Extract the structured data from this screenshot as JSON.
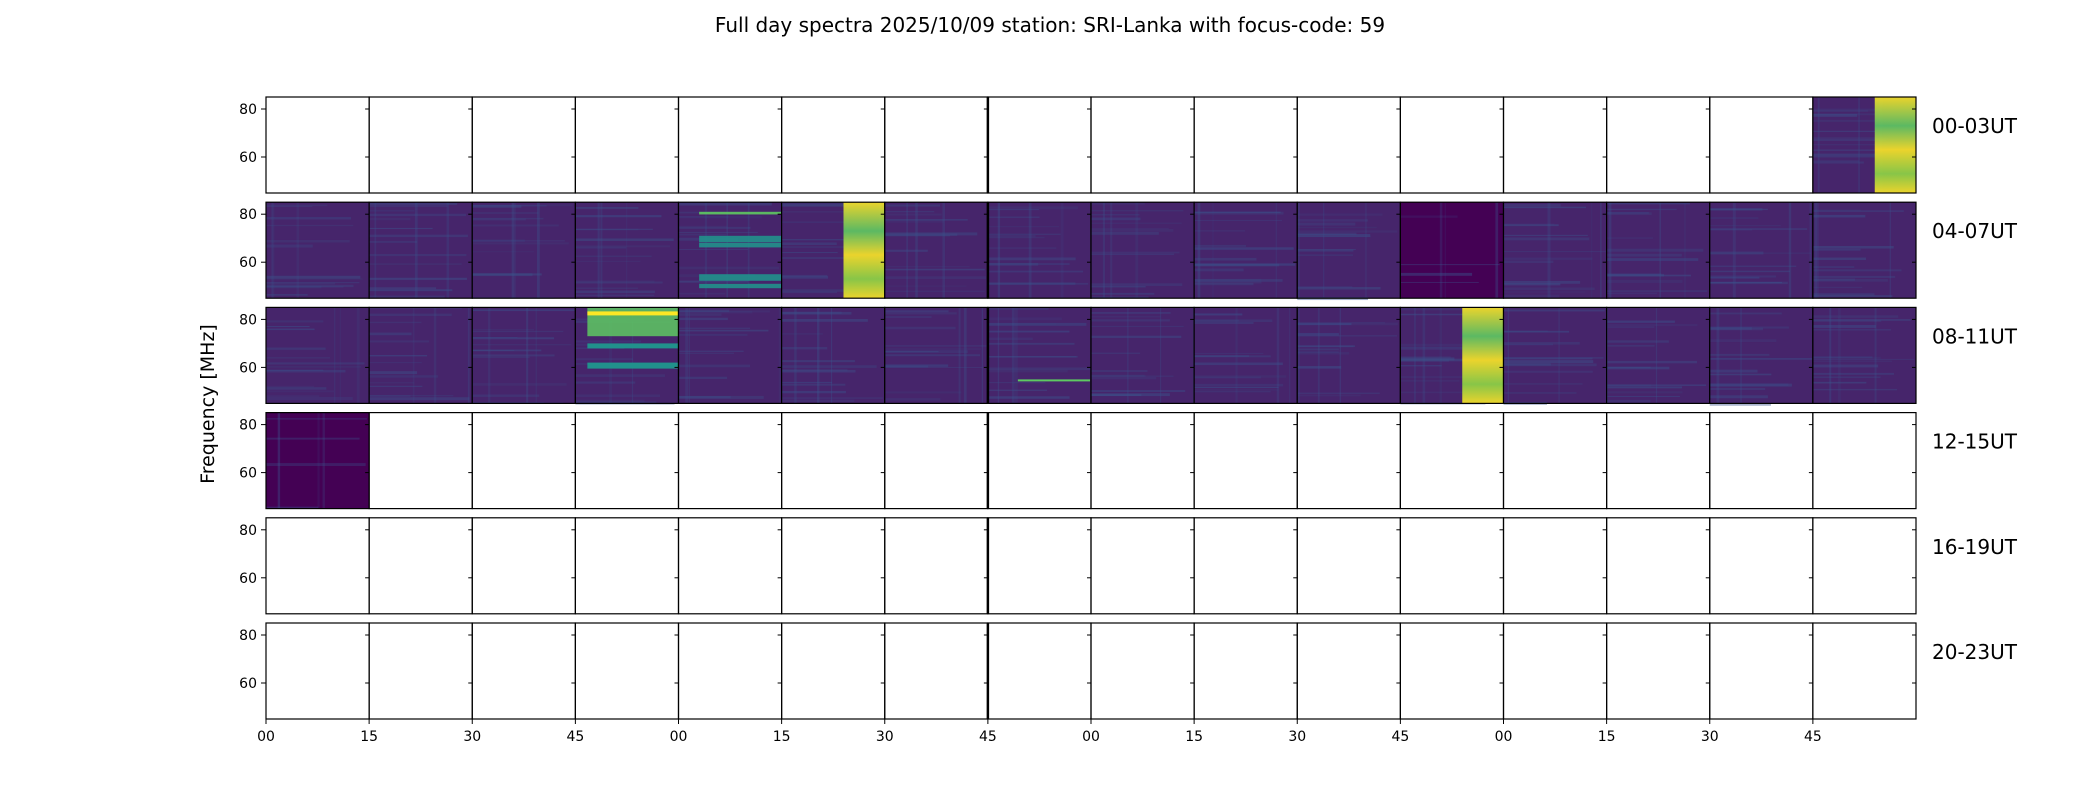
{
  "chart_data": {
    "type": "heatmap",
    "title": "Full day spectra 2025/10/09 station: SRI-Lanka with focus-code: 59",
    "ylabel": "Frequency [MHz]",
    "ylim": [
      45,
      85
    ],
    "yticks": [
      "80",
      "60"
    ],
    "ytick_values": [
      80,
      60
    ],
    "xticks": [
      "00",
      "15",
      "30",
      "45",
      "00",
      "15",
      "30",
      "45",
      "00",
      "15",
      "30",
      "45",
      "00",
      "15",
      "30",
      "45"
    ],
    "colormap": "viridis",
    "color_stops": [
      "#440154",
      "#3b528b",
      "#21918c",
      "#5ec962",
      "#fde725"
    ],
    "rows": [
      {
        "label": "00-03UT",
        "panels": [
          "",
          "",
          "",
          "",
          "",
          "",
          "",
          "",
          "",
          "",
          "",
          "",
          "",
          "",
          "",
          "burst"
        ]
      },
      {
        "label": "04-07UT",
        "panels": [
          "quiet",
          "quiet",
          "quiet",
          "quiet",
          "bands",
          "burst",
          "quiet",
          "quiet",
          "quiet",
          "quiet",
          "quiet",
          "dark",
          "quiet",
          "quiet",
          "quiet",
          "quiet"
        ]
      },
      {
        "label": "08-11UT",
        "panels": [
          "quiet",
          "quiet",
          "quiet",
          "bright",
          "quiet",
          "quiet",
          "quiet",
          "line",
          "quiet",
          "quiet",
          "quiet",
          "burst",
          "quiet",
          "quiet",
          "quiet",
          "quiet"
        ]
      },
      {
        "label": "12-15UT",
        "panels": [
          "dark",
          "",
          "",
          "",
          "",
          "",
          "",
          "",
          "",
          "",
          "",
          "",
          "",
          "",
          "",
          ""
        ]
      },
      {
        "label": "16-19UT",
        "panels": [
          "",
          "",
          "",
          "",
          "",
          "",
          "",
          "",
          "",
          "",
          "",
          "",
          "",
          "",
          "",
          ""
        ]
      },
      {
        "label": "20-23UT",
        "panels": [
          "",
          "",
          "",
          "",
          "",
          "",
          "",
          "",
          "",
          "",
          "",
          "",
          "",
          "",
          "",
          ""
        ]
      }
    ]
  }
}
